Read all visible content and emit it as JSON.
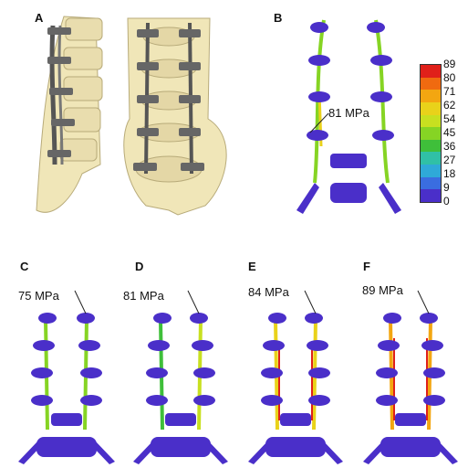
{
  "panels": {
    "a": "A",
    "b": "B",
    "c": "C",
    "d": "D",
    "e": "E",
    "f": "F"
  },
  "annotations": {
    "b": "81 MPa",
    "c": "75 MPa",
    "d": "81 MPa",
    "e": "84 MPa",
    "f": "89 MPa"
  },
  "color_scale": {
    "ticks": [
      "89",
      "80",
      "71",
      "62",
      "54",
      "45",
      "36",
      "27",
      "18",
      "9",
      "0"
    ],
    "colors": [
      "#e0201a",
      "#f06a10",
      "#f3a611",
      "#e9d21a",
      "#c8e020",
      "#86d424",
      "#3fbf3a",
      "#30c0a6",
      "#2fa9d8",
      "#3a6de0",
      "#4a2fc9"
    ]
  },
  "colors": {
    "bone": "#f0e6b8",
    "implant": "#6a6a6a",
    "low_stress": "#4a2fc9",
    "high_stress": "#e0201a"
  }
}
